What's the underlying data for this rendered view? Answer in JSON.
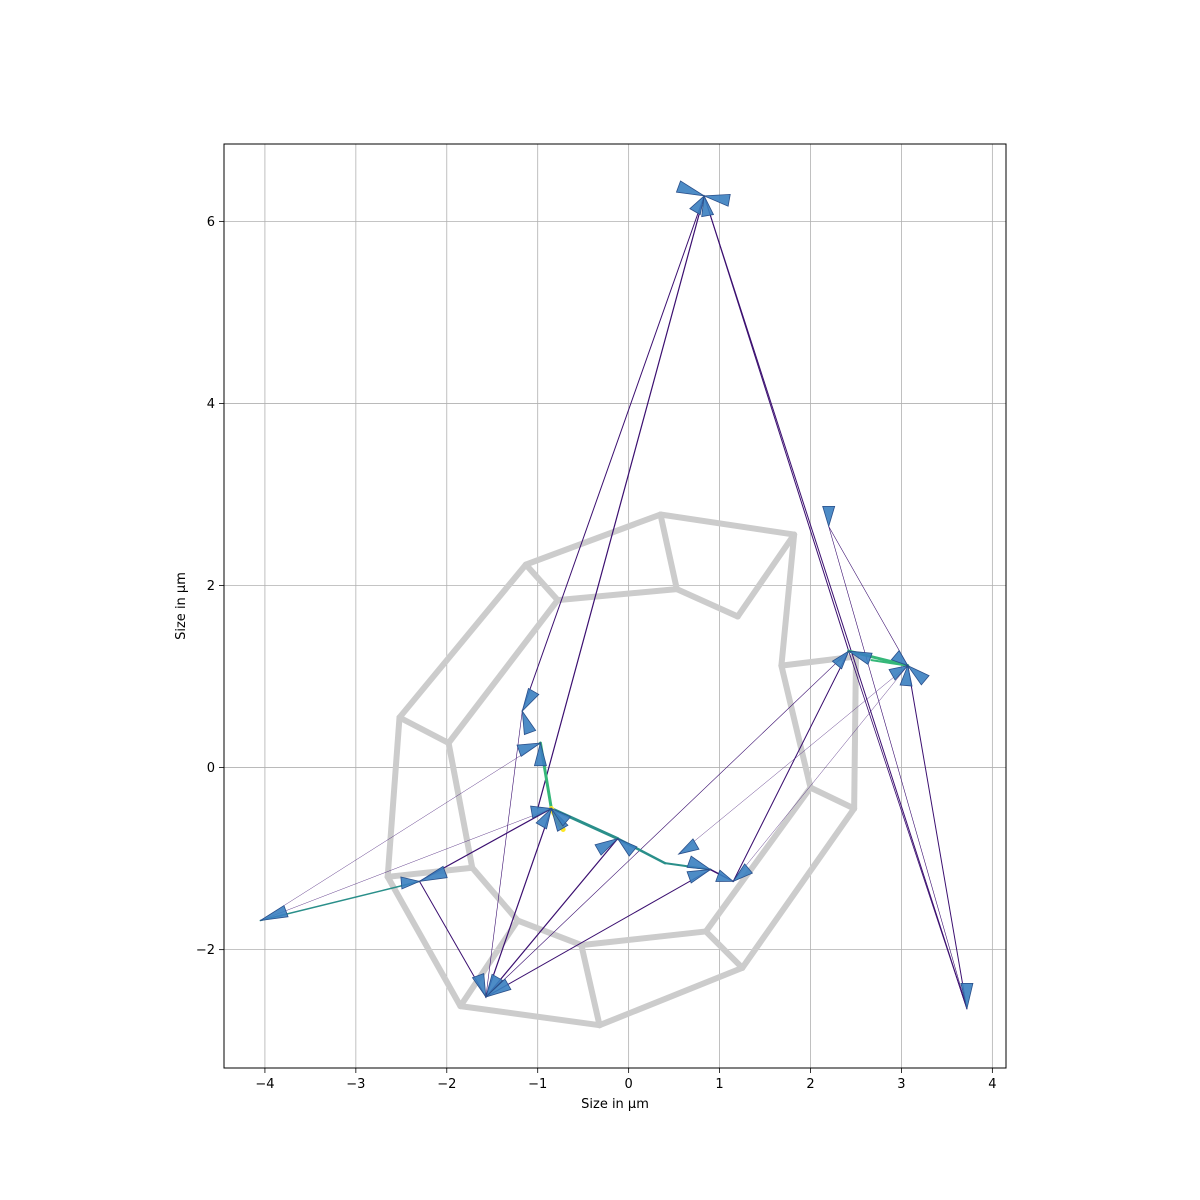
{
  "chart_data": {
    "type": "line",
    "title": "",
    "xlabel": "Size in µm",
    "ylabel": "Size in µm",
    "xlim": [
      -4.45,
      4.15
    ],
    "ylim": [
      -3.3,
      6.85
    ],
    "grid": true,
    "xticks": [
      -4,
      -3,
      -2,
      -1,
      0,
      1,
      2,
      3,
      4
    ],
    "xtick_labels": [
      "−4",
      "−3",
      "−2",
      "−1",
      "0",
      "1",
      "2",
      "3",
      "4"
    ],
    "yticks": [
      -2,
      0,
      2,
      4,
      6
    ],
    "ytick_labels": [
      "−2",
      "0",
      "2",
      "4",
      "6"
    ],
    "colors": {
      "mesh": "#cccccc",
      "arrow_fill": "#3a7fc0",
      "arrow_edge": "#2a4f8a",
      "edge_dark": "#3b0f70",
      "edge_mid": "#2a8f8a",
      "edge_teal": "#35b779",
      "edge_yellow": "#fde725"
    },
    "mesh_segments": [
      [
        [
          0.35,
          2.78
        ],
        [
          1.82,
          2.56
        ]
      ],
      [
        [
          1.82,
          2.56
        ],
        [
          1.68,
          1.12
        ]
      ],
      [
        [
          1.68,
          1.12
        ],
        [
          2.5,
          1.22
        ]
      ],
      [
        [
          2.5,
          1.22
        ],
        [
          2.48,
          -0.45
        ]
      ],
      [
        [
          2.48,
          -0.45
        ],
        [
          2.0,
          -0.22
        ]
      ],
      [
        [
          2.0,
          -0.22
        ],
        [
          1.68,
          1.12
        ]
      ],
      [
        [
          2.48,
          -0.45
        ],
        [
          1.25,
          -2.2
        ]
      ],
      [
        [
          1.25,
          -2.2
        ],
        [
          0.85,
          -1.8
        ]
      ],
      [
        [
          0.85,
          -1.8
        ],
        [
          2.0,
          -0.22
        ]
      ],
      [
        [
          1.25,
          -2.2
        ],
        [
          -0.32,
          -2.83
        ]
      ],
      [
        [
          -0.32,
          -2.83
        ],
        [
          -0.52,
          -1.95
        ]
      ],
      [
        [
          -0.52,
          -1.95
        ],
        [
          0.85,
          -1.8
        ]
      ],
      [
        [
          -0.32,
          -2.83
        ],
        [
          -1.85,
          -2.62
        ]
      ],
      [
        [
          -1.85,
          -2.62
        ],
        [
          -1.22,
          -1.68
        ]
      ],
      [
        [
          -1.22,
          -1.68
        ],
        [
          -0.52,
          -1.95
        ]
      ],
      [
        [
          -1.85,
          -2.62
        ],
        [
          -2.65,
          -1.2
        ]
      ],
      [
        [
          -2.65,
          -1.2
        ],
        [
          -1.72,
          -1.1
        ]
      ],
      [
        [
          -1.72,
          -1.1
        ],
        [
          -1.22,
          -1.68
        ]
      ],
      [
        [
          -2.65,
          -1.2
        ],
        [
          -2.52,
          0.55
        ]
      ],
      [
        [
          -2.52,
          0.55
        ],
        [
          -1.98,
          0.27
        ]
      ],
      [
        [
          -1.98,
          0.27
        ],
        [
          -1.72,
          -1.1
        ]
      ],
      [
        [
          -2.52,
          0.55
        ],
        [
          -1.13,
          2.23
        ]
      ],
      [
        [
          -1.13,
          2.23
        ],
        [
          -0.78,
          1.84
        ]
      ],
      [
        [
          -0.78,
          1.84
        ],
        [
          -1.98,
          0.27
        ]
      ],
      [
        [
          -1.13,
          2.23
        ],
        [
          0.35,
          2.78
        ]
      ],
      [
        [
          0.35,
          2.78
        ],
        [
          0.53,
          1.96
        ]
      ],
      [
        [
          0.53,
          1.96
        ],
        [
          -0.78,
          1.84
        ]
      ],
      [
        [
          0.53,
          1.96
        ],
        [
          1.2,
          1.66
        ]
      ],
      [
        [
          1.2,
          1.66
        ],
        [
          1.82,
          2.56
        ]
      ]
    ],
    "edges": [
      {
        "from": [
          0.83,
          6.28
        ],
        "to": [
          -1.17,
          0.62
        ],
        "color": "edge_dark",
        "width": 1.0
      },
      {
        "from": [
          0.83,
          6.28
        ],
        "to": [
          -1.0,
          -0.45
        ],
        "color": "edge_dark",
        "width": 1.2
      },
      {
        "from": [
          0.83,
          6.28
        ],
        "to": [
          2.42,
          1.28
        ],
        "color": "edge_dark",
        "width": 1.0
      },
      {
        "from": [
          0.83,
          6.28
        ],
        "to": [
          3.72,
          -2.65
        ],
        "color": "edge_dark",
        "width": 1.0
      },
      {
        "from": [
          2.2,
          2.65
        ],
        "to": [
          3.72,
          -2.65
        ],
        "color": "edge_dark",
        "width": 0.6
      },
      {
        "from": [
          2.2,
          2.65
        ],
        "to": [
          3.07,
          1.12
        ],
        "color": "edge_dark",
        "width": 0.6
      },
      {
        "from": [
          3.07,
          1.12
        ],
        "to": [
          3.72,
          -2.65
        ],
        "color": "edge_dark",
        "width": 1.0
      },
      {
        "from": [
          2.42,
          1.28
        ],
        "to": [
          3.72,
          -2.65
        ],
        "color": "edge_dark",
        "width": 0.8
      },
      {
        "from": [
          2.42,
          1.28
        ],
        "to": [
          1.15,
          -1.25
        ],
        "color": "edge_dark",
        "width": 1.0
      },
      {
        "from": [
          2.42,
          1.28
        ],
        "to": [
          3.07,
          1.12
        ],
        "color": "edge_teal",
        "width": 3.0
      },
      {
        "from": [
          2.42,
          1.28
        ],
        "to": [
          -1.57,
          -2.52
        ],
        "color": "edge_dark",
        "width": 0.6
      },
      {
        "from": [
          3.07,
          1.12
        ],
        "to": [
          0.55,
          -0.95
        ],
        "color": "edge_dark",
        "width": 0.4
      },
      {
        "from": [
          -0.85,
          -0.45
        ],
        "to": [
          -0.97,
          0.27
        ],
        "color": "edge_teal",
        "width": 3.0
      },
      {
        "from": [
          -0.85,
          -0.45
        ],
        "to": [
          -0.12,
          -0.78
        ],
        "color": "edge_mid",
        "width": 3.0
      },
      {
        "from": [
          -0.85,
          -0.45
        ],
        "to": [
          -0.72,
          -0.68
        ],
        "color": "edge_yellow",
        "width": 5.0
      },
      {
        "from": [
          -0.12,
          -0.78
        ],
        "to": [
          0.4,
          -1.05
        ],
        "color": "edge_mid",
        "width": 2.5
      },
      {
        "from": [
          0.4,
          -1.05
        ],
        "to": [
          0.9,
          -1.12
        ],
        "color": "edge_mid",
        "width": 2.0
      },
      {
        "from": [
          0.9,
          -1.12
        ],
        "to": [
          1.15,
          -1.25
        ],
        "color": "edge_dark",
        "width": 1.5
      },
      {
        "from": [
          -0.85,
          -0.45
        ],
        "to": [
          -2.3,
          -1.25
        ],
        "color": "edge_dark",
        "width": 1.2
      },
      {
        "from": [
          -0.85,
          -0.45
        ],
        "to": [
          -1.57,
          -2.52
        ],
        "color": "edge_dark",
        "width": 1.2
      },
      {
        "from": [
          -0.97,
          0.27
        ],
        "to": [
          -4.05,
          -1.68
        ],
        "color": "edge_dark",
        "width": 0.4
      },
      {
        "from": [
          -1.17,
          0.62
        ],
        "to": [
          -1.57,
          -2.52
        ],
        "color": "edge_dark",
        "width": 0.6
      },
      {
        "from": [
          -2.3,
          -1.25
        ],
        "to": [
          -4.05,
          -1.68
        ],
        "color": "edge_mid",
        "width": 1.5
      },
      {
        "from": [
          -2.3,
          -1.25
        ],
        "to": [
          -1.57,
          -2.52
        ],
        "color": "edge_dark",
        "width": 1.0
      },
      {
        "from": [
          -0.85,
          -0.45
        ],
        "to": [
          -4.05,
          -1.68
        ],
        "color": "edge_dark",
        "width": 0.4
      },
      {
        "from": [
          -0.12,
          -0.78
        ],
        "to": [
          -1.57,
          -2.52
        ],
        "color": "edge_dark",
        "width": 1.2
      },
      {
        "from": [
          0.9,
          -1.12
        ],
        "to": [
          -1.57,
          -2.52
        ],
        "color": "edge_dark",
        "width": 1.0
      },
      {
        "from": [
          1.15,
          -1.25
        ],
        "to": [
          2.42,
          1.28
        ],
        "color": "edge_dark",
        "width": 0.6
      },
      {
        "from": [
          1.15,
          -1.25
        ],
        "to": [
          3.07,
          1.12
        ],
        "color": "edge_dark",
        "width": 0.4
      },
      {
        "from": [
          3.07,
          1.12
        ],
        "to": [
          2.67,
          1.18
        ],
        "color": "edge_teal",
        "width": 2.0
      }
    ],
    "arrows": [
      {
        "pos": [
          0.83,
          6.28
        ],
        "angle": 160,
        "len": 0.3
      },
      {
        "pos": [
          0.83,
          6.28
        ],
        "angle": -10,
        "len": 0.28
      },
      {
        "pos": [
          0.83,
          6.28
        ],
        "angle": 240,
        "len": 0.2
      },
      {
        "pos": [
          0.83,
          6.28
        ],
        "angle": 280,
        "len": 0.22
      },
      {
        "pos": [
          2.2,
          2.65
        ],
        "angle": 90,
        "len": 0.22
      },
      {
        "pos": [
          2.42,
          1.28
        ],
        "angle": 230,
        "len": 0.2
      },
      {
        "pos": [
          2.42,
          1.28
        ],
        "angle": -20,
        "len": 0.25
      },
      {
        "pos": [
          3.07,
          1.12
        ],
        "angle": 140,
        "len": 0.18
      },
      {
        "pos": [
          3.07,
          1.12
        ],
        "angle": 210,
        "len": 0.2
      },
      {
        "pos": [
          3.07,
          1.12
        ],
        "angle": -40,
        "len": 0.25
      },
      {
        "pos": [
          3.07,
          1.12
        ],
        "angle": 265,
        "len": 0.22
      },
      {
        "pos": [
          3.72,
          -2.65
        ],
        "angle": 90,
        "len": 0.28
      },
      {
        "pos": [
          -1.17,
          0.62
        ],
        "angle": 60,
        "len": 0.25
      },
      {
        "pos": [
          -1.17,
          0.62
        ],
        "angle": -70,
        "len": 0.25
      },
      {
        "pos": [
          -0.97,
          0.27
        ],
        "angle": 200,
        "len": 0.25
      },
      {
        "pos": [
          -0.97,
          0.27
        ],
        "angle": 270,
        "len": 0.25
      },
      {
        "pos": [
          -0.85,
          -0.45
        ],
        "angle": 190,
        "len": 0.22
      },
      {
        "pos": [
          -0.85,
          -0.45
        ],
        "angle": 240,
        "len": 0.22
      },
      {
        "pos": [
          -0.85,
          -0.45
        ],
        "angle": -60,
        "len": 0.25
      },
      {
        "pos": [
          -0.85,
          -0.45
        ],
        "angle": -40,
        "len": 0.22
      },
      {
        "pos": [
          -0.12,
          -0.78
        ],
        "angle": 210,
        "len": 0.25
      },
      {
        "pos": [
          -0.12,
          -0.78
        ],
        "angle": -40,
        "len": 0.22
      },
      {
        "pos": [
          0.55,
          -0.95
        ],
        "angle": 30,
        "len": 0.22
      },
      {
        "pos": [
          0.9,
          -1.12
        ],
        "angle": 160,
        "len": 0.25
      },
      {
        "pos": [
          0.9,
          -1.12
        ],
        "angle": 200,
        "len": 0.25
      },
      {
        "pos": [
          1.15,
          -1.25
        ],
        "angle": 40,
        "len": 0.22
      },
      {
        "pos": [
          1.15,
          -1.25
        ],
        "angle": 160,
        "len": 0.18
      },
      {
        "pos": [
          -2.3,
          -1.25
        ],
        "angle": 20,
        "len": 0.3
      },
      {
        "pos": [
          -2.3,
          -1.25
        ],
        "angle": 185,
        "len": 0.2
      },
      {
        "pos": [
          -4.05,
          -1.68
        ],
        "angle": 20,
        "len": 0.3
      },
      {
        "pos": [
          -1.57,
          -2.52
        ],
        "angle": 110,
        "len": 0.25
      },
      {
        "pos": [
          -1.57,
          -2.52
        ],
        "angle": 60,
        "len": 0.25
      },
      {
        "pos": [
          -1.57,
          -2.52
        ],
        "angle": 30,
        "len": 0.28
      }
    ]
  }
}
